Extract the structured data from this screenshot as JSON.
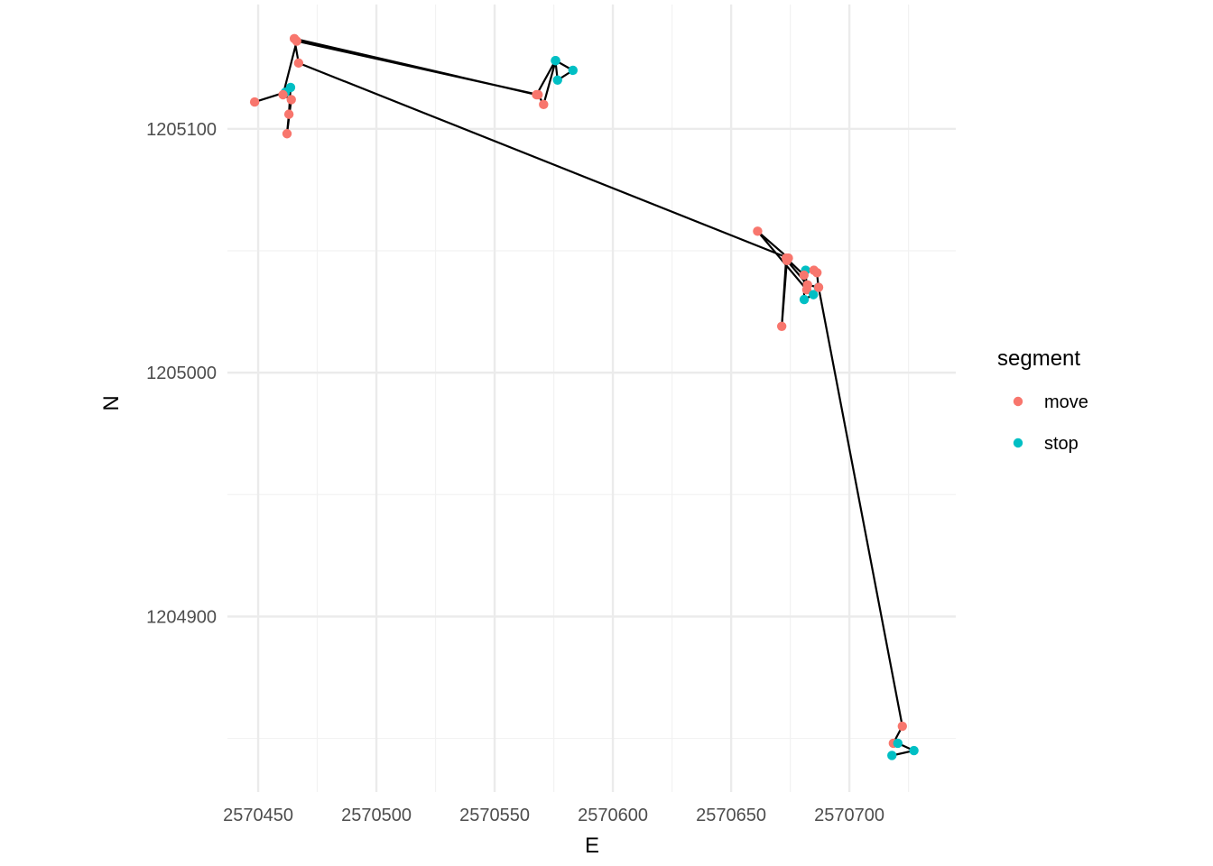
{
  "chart_data": {
    "type": "scatter",
    "xlabel": "E",
    "ylabel": "N",
    "xlim": [
      2570437,
      2570745
    ],
    "ylim": [
      1204828,
      1205151
    ],
    "x_major_ticks": [
      2570450,
      2570500,
      2570550,
      2570600,
      2570650,
      2570700
    ],
    "x_minor_ticks": [
      2570475,
      2570525,
      2570575,
      2570625,
      2570675,
      2570725
    ],
    "y_major_ticks": [
      1204900,
      1205000,
      1205100
    ],
    "y_minor_ticks": [
      1204850,
      1204950,
      1205050
    ],
    "x_tick_labels": [
      "2570450",
      "2570500",
      "2570550",
      "2570600",
      "2570650",
      "2570700"
    ],
    "y_tick_labels": [
      "1204900",
      "1205000",
      "1205100"
    ],
    "grid": true,
    "line_color": "#000000",
    "legend": {
      "title": "segment",
      "position": "right",
      "entries": [
        {
          "name": "move",
          "color": "#F8766D"
        },
        {
          "name": "stop",
          "color": "#00BFC4"
        }
      ]
    },
    "points": [
      {
        "x": 2570448.5,
        "y": 1205111,
        "segment": "move"
      },
      {
        "x": 2570461.5,
        "y": 1205115,
        "segment": "stop"
      },
      {
        "x": 2570463.7,
        "y": 1205117,
        "segment": "stop"
      },
      {
        "x": 2570463.0,
        "y": 1205106,
        "segment": "move"
      },
      {
        "x": 2570462.2,
        "y": 1205098,
        "segment": "move"
      },
      {
        "x": 2570464.0,
        "y": 1205112,
        "segment": "move"
      },
      {
        "x": 2570460.5,
        "y": 1205114,
        "segment": "move"
      },
      {
        "x": 2570466.3,
        "y": 1205136,
        "segment": "move"
      },
      {
        "x": 2570568.4,
        "y": 1205114,
        "segment": "move"
      },
      {
        "x": 2570570.7,
        "y": 1205110,
        "segment": "move"
      },
      {
        "x": 2570575.8,
        "y": 1205128,
        "segment": "stop"
      },
      {
        "x": 2570583.1,
        "y": 1205124,
        "segment": "stop"
      },
      {
        "x": 2570576.6,
        "y": 1205120,
        "segment": "stop"
      },
      {
        "x": 2570575.7,
        "y": 1205128,
        "segment": "stop"
      },
      {
        "x": 2570567.7,
        "y": 1205114,
        "segment": "move"
      },
      {
        "x": 2570465.3,
        "y": 1205137,
        "segment": "move"
      },
      {
        "x": 2570467.1,
        "y": 1205127,
        "segment": "move"
      },
      {
        "x": 2570674.2,
        "y": 1205047,
        "segment": "move"
      },
      {
        "x": 2570661.2,
        "y": 1205058,
        "segment": "move"
      },
      {
        "x": 2570682.0,
        "y": 1205034,
        "segment": "move"
      },
      {
        "x": 2570681.5,
        "y": 1205042,
        "segment": "stop"
      },
      {
        "x": 2570685.0,
        "y": 1205042,
        "segment": "move"
      },
      {
        "x": 2570686.3,
        "y": 1205041,
        "segment": "move"
      },
      {
        "x": 2570686.9,
        "y": 1205035,
        "segment": "stop"
      },
      {
        "x": 2570684.8,
        "y": 1205032,
        "segment": "stop"
      },
      {
        "x": 2570680.9,
        "y": 1205030,
        "segment": "stop"
      },
      {
        "x": 2570680.8,
        "y": 1205040,
        "segment": "move"
      },
      {
        "x": 2570673.3,
        "y": 1205047,
        "segment": "move"
      },
      {
        "x": 2570671.4,
        "y": 1205019,
        "segment": "move"
      },
      {
        "x": 2570673.6,
        "y": 1205046,
        "segment": "move"
      },
      {
        "x": 2570682.3,
        "y": 1205036,
        "segment": "move"
      },
      {
        "x": 2570687.0,
        "y": 1205035,
        "segment": "move"
      },
      {
        "x": 2570722.4,
        "y": 1204855,
        "segment": "move"
      },
      {
        "x": 2570718.6,
        "y": 1204848,
        "segment": "move"
      },
      {
        "x": 2570720.5,
        "y": 1204848,
        "segment": "stop"
      },
      {
        "x": 2570727.3,
        "y": 1204845,
        "segment": "stop"
      },
      {
        "x": 2570718.0,
        "y": 1204843,
        "segment": "stop"
      }
    ]
  }
}
